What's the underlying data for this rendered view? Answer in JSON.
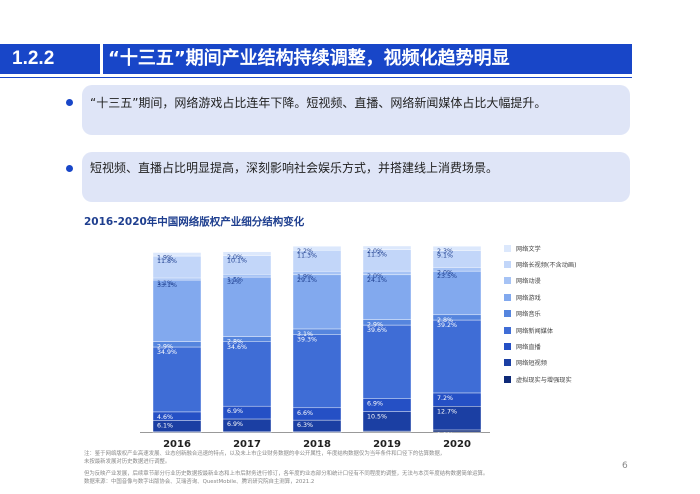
{
  "header": {
    "section_number": "1.2.2",
    "title": "“十三五”期间产业结构持续调整，视频化趋势明显"
  },
  "bullets": [
    "“十三五”期间，网络游戏占比连年下降。短视频、直播、网络新闻媒体占比大幅提升。",
    "短视频、直播占比明显提高，深刻影响社会娱乐方式，并搭建线上消费场景。"
  ],
  "colors": {
    "accent": "#1846c8",
    "bullet_box": "#dfe5f7"
  },
  "chart_data": {
    "type": "bar",
    "stacked": true,
    "title": "2016-2020年中国网络版权产业细分结构变化",
    "categories": [
      "2016",
      "2017",
      "2018",
      "2019",
      "2020"
    ],
    "ylim": [
      0,
      100
    ],
    "legend_position": "right",
    "series": [
      {
        "name": "虚拟现实与增强现实",
        "color": "#0e2a78",
        "values": [
          0.1,
          0.1,
          0.1,
          0.5,
          1.1
        ]
      },
      {
        "name": "网络短视频",
        "color": "#1b3fa3",
        "values": [
          6.1,
          6.9,
          6.3,
          10.5,
          12.7
        ]
      },
      {
        "name": "网络直播",
        "color": "#2550c5",
        "values": [
          4.6,
          6.9,
          6.6,
          6.9,
          7.2
        ]
      },
      {
        "name": "网络新闻媒体",
        "color": "#3f6dd6",
        "values": [
          34.9,
          34.6,
          39.3,
          39.6,
          39.2
        ]
      },
      {
        "name": "网络音乐",
        "color": "#5585de",
        "values": [
          2.9,
          2.8,
          3.1,
          2.9,
          2.8
        ]
      },
      {
        "name": "网络游戏",
        "color": "#82a9ee",
        "values": [
          33.1,
          32.0,
          29.1,
          24.1,
          23.5
        ]
      },
      {
        "name": "网络动漫",
        "color": "#a6c3f5",
        "values": [
          1.1,
          1.5,
          1.9,
          2.0,
          2.0
        ]
      },
      {
        "name": "网络长视频(不含动画)",
        "color": "#c2d6f9",
        "values": [
          11.8,
          10.1,
          11.3,
          11.5,
          9.1
        ]
      },
      {
        "name": "网络文学",
        "color": "#dce8fc",
        "values": [
          1.9,
          2.0,
          2.2,
          2.0,
          2.3
        ]
      }
    ],
    "data_labels": [
      [
        "0.1%",
        "6.1%",
        "4.6%",
        "34.9%",
        "2.9%",
        "33.1%",
        "1.1%",
        "11.8%",
        "1.9%"
      ],
      [
        "0.1%",
        "6.9%",
        "6.9%",
        "34.6%",
        "2.8%",
        "32%",
        "1.5%",
        "10.1%",
        "2.0%"
      ],
      [
        "0.1%",
        "6.3%",
        "6.6%",
        "39.3%",
        "3.1%",
        "29.1%",
        "1.9%",
        "11.3%",
        "2.2%"
      ],
      [
        "0.5%",
        "10.5%",
        "6.9%",
        "39.6%",
        "2.9%",
        "24.1%",
        "2.0%",
        "11.5%",
        "2.0%"
      ],
      [
        "1.1%",
        "12.7%",
        "7.2%",
        "39.2%",
        "2.8%",
        "23.5%",
        "2.0%",
        "9.1%",
        "2.3%"
      ]
    ]
  },
  "legend_order": [
    "网络文学",
    "网络长视频(不含动画)",
    "网络动漫",
    "网络游戏",
    "网络音乐",
    "网络新闻媒体",
    "网络直播",
    "网络短视频",
    "虚拟现实与增强现实"
  ],
  "footnotes": [
    "注：鉴于网络版权产业高速发展、业态创新融合迅速的特点，以及未上市企业财务数据的非公开属性，年度结构数据仅为当年条件和口径下的估算数据，",
    "未按最新发展对历史数据进行调整。",
    "但为反映产业发展，后续章节部分行业历史数据按最新业态和上市后财务进行修订，各年度的业态部分和统计口径有不同程度的调整，无法与本页年度结构数据简单运算。",
    "数据来源：中国音像与数字出版协会、艾瑞咨询、QuestMobile、腾讯研究院自主测算，2021.2"
  ],
  "page_number": "6"
}
